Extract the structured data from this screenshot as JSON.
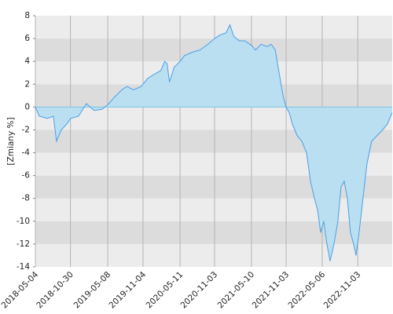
{
  "chart_data": {
    "type": "area",
    "y_label": "[Zmiany %]",
    "x": [
      "2018-05-04",
      "2018-05-24",
      "2018-07-03",
      "2018-08-04",
      "2018-08-20",
      "2018-09-13",
      "2018-10-11",
      "2018-10-30",
      "2018-12-10",
      "2019-01-19",
      "2019-02-28",
      "2019-04-09",
      "2019-05-08",
      "2019-06-08",
      "2019-07-18",
      "2019-08-15",
      "2019-09-16",
      "2019-10-26",
      "2019-11-27",
      "2019-12-25",
      "2020-01-14",
      "2020-02-03",
      "2020-02-23",
      "2020-03-06",
      "2020-03-18",
      "2020-04-11",
      "2020-05-11",
      "2020-06-02",
      "2020-07-12",
      "2020-08-21",
      "2020-09-30",
      "2020-11-03",
      "2020-11-29",
      "2020-12-31",
      "2021-01-20",
      "2021-02-09",
      "2021-03-09",
      "2021-04-06",
      "2021-05-10",
      "2021-05-31",
      "2021-06-28",
      "2021-07-30",
      "2021-08-19",
      "2021-09-08",
      "2021-09-28",
      "2021-10-18",
      "2021-11-03",
      "2021-11-19",
      "2021-12-05",
      "2021-12-29",
      "2022-01-22",
      "2022-02-15",
      "2022-03-07",
      "2022-03-27",
      "2022-04-12",
      "2022-04-28",
      "2022-05-14",
      "2022-05-30",
      "2022-06-15",
      "2022-07-05",
      "2022-07-25",
      "2022-08-10",
      "2022-08-26",
      "2022-09-11",
      "2022-09-27",
      "2022-10-13",
      "2022-10-25",
      "2022-11-10",
      "2022-11-30",
      "2022-12-20",
      "2023-01-13",
      "2023-02-10",
      "2023-03-10",
      "2023-04-03",
      "2023-04-27"
    ],
    "values": [
      0,
      -0.8,
      -1,
      -0.8,
      -3,
      -2,
      -1.5,
      -1,
      -0.8,
      0.3,
      -0.3,
      -0.2,
      0.2,
      0.8,
      1.5,
      1.8,
      1.5,
      1.8,
      2.5,
      2.8,
      3,
      3.2,
      4,
      3.8,
      2.2,
      3.5,
      4,
      4.5,
      4.8,
      5,
      5.5,
      6,
      6.3,
      6.5,
      7.2,
      6.2,
      5.8,
      5.8,
      5.4,
      5,
      5.5,
      5.3,
      5.5,
      5,
      3,
      1,
      0,
      -0.5,
      -1.5,
      -2.5,
      -3,
      -4,
      -6.5,
      -8,
      -9,
      -11,
      -10,
      -12,
      -13.5,
      -12,
      -10,
      -7,
      -6.5,
      -8,
      -11,
      -12,
      -13,
      -11,
      -8,
      -5,
      -3,
      -2.5,
      -2,
      -1.5,
      -0.5
    ],
    "line_color": "#4a9fe8",
    "fill_color": "#b9dff0",
    "xlim": [
      "2018-05-04",
      "2023-04-28"
    ],
    "xticks": [
      "2018-05-04",
      "2018-10-30",
      "2019-05-08",
      "2019-11-04",
      "2020-05-11",
      "2020-11-03",
      "2021-05-10",
      "2021-11-03",
      "2022-05-06",
      "2022-11-03"
    ],
    "ylim": [
      -14,
      8
    ],
    "yticks": [
      -14,
      -12,
      -10,
      -8,
      -6,
      -4,
      -2,
      0,
      2,
      4,
      6,
      8
    ],
    "grid": true
  }
}
